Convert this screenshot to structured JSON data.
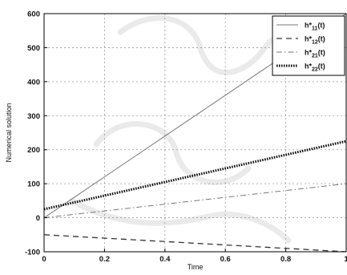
{
  "chart_data": {
    "type": "line",
    "xlabel": "Time",
    "ylabel": "Numerical solution",
    "xlim": [
      0,
      1
    ],
    "ylim": [
      -100,
      600
    ],
    "x_ticks": [
      "0",
      "0.2",
      "0.4",
      "0.6",
      "0.8",
      "1"
    ],
    "y_ticks": [
      "-100",
      "0",
      "100",
      "200",
      "300",
      "400",
      "500",
      "600"
    ],
    "grid": true,
    "legend_position": "top-right",
    "series": [
      {
        "name": "h*11(t)",
        "label_main": "h*",
        "label_sub": "11",
        "label_tail": "(t)",
        "style": "solid",
        "color": "#777777",
        "x": [
          0,
          1
        ],
        "y": [
          0,
          600
        ]
      },
      {
        "name": "h*12(t)",
        "label_main": "h*",
        "label_sub": "12",
        "label_tail": "(t)",
        "style": "dashed",
        "color": "#333333",
        "x": [
          0,
          1
        ],
        "y": [
          -50,
          -100
        ]
      },
      {
        "name": "h*21(t)",
        "label_main": "h*",
        "label_sub": "21",
        "label_tail": "(t)",
        "style": "dashdot",
        "color": "#777777",
        "x": [
          0,
          1
        ],
        "y": [
          0,
          100
        ]
      },
      {
        "name": "h*22(t)",
        "label_main": "h*",
        "label_sub": "22",
        "label_tail": "(t)",
        "style": "dotted",
        "color": "#000000",
        "x": [
          0,
          1
        ],
        "y": [
          25,
          225
        ]
      }
    ]
  }
}
